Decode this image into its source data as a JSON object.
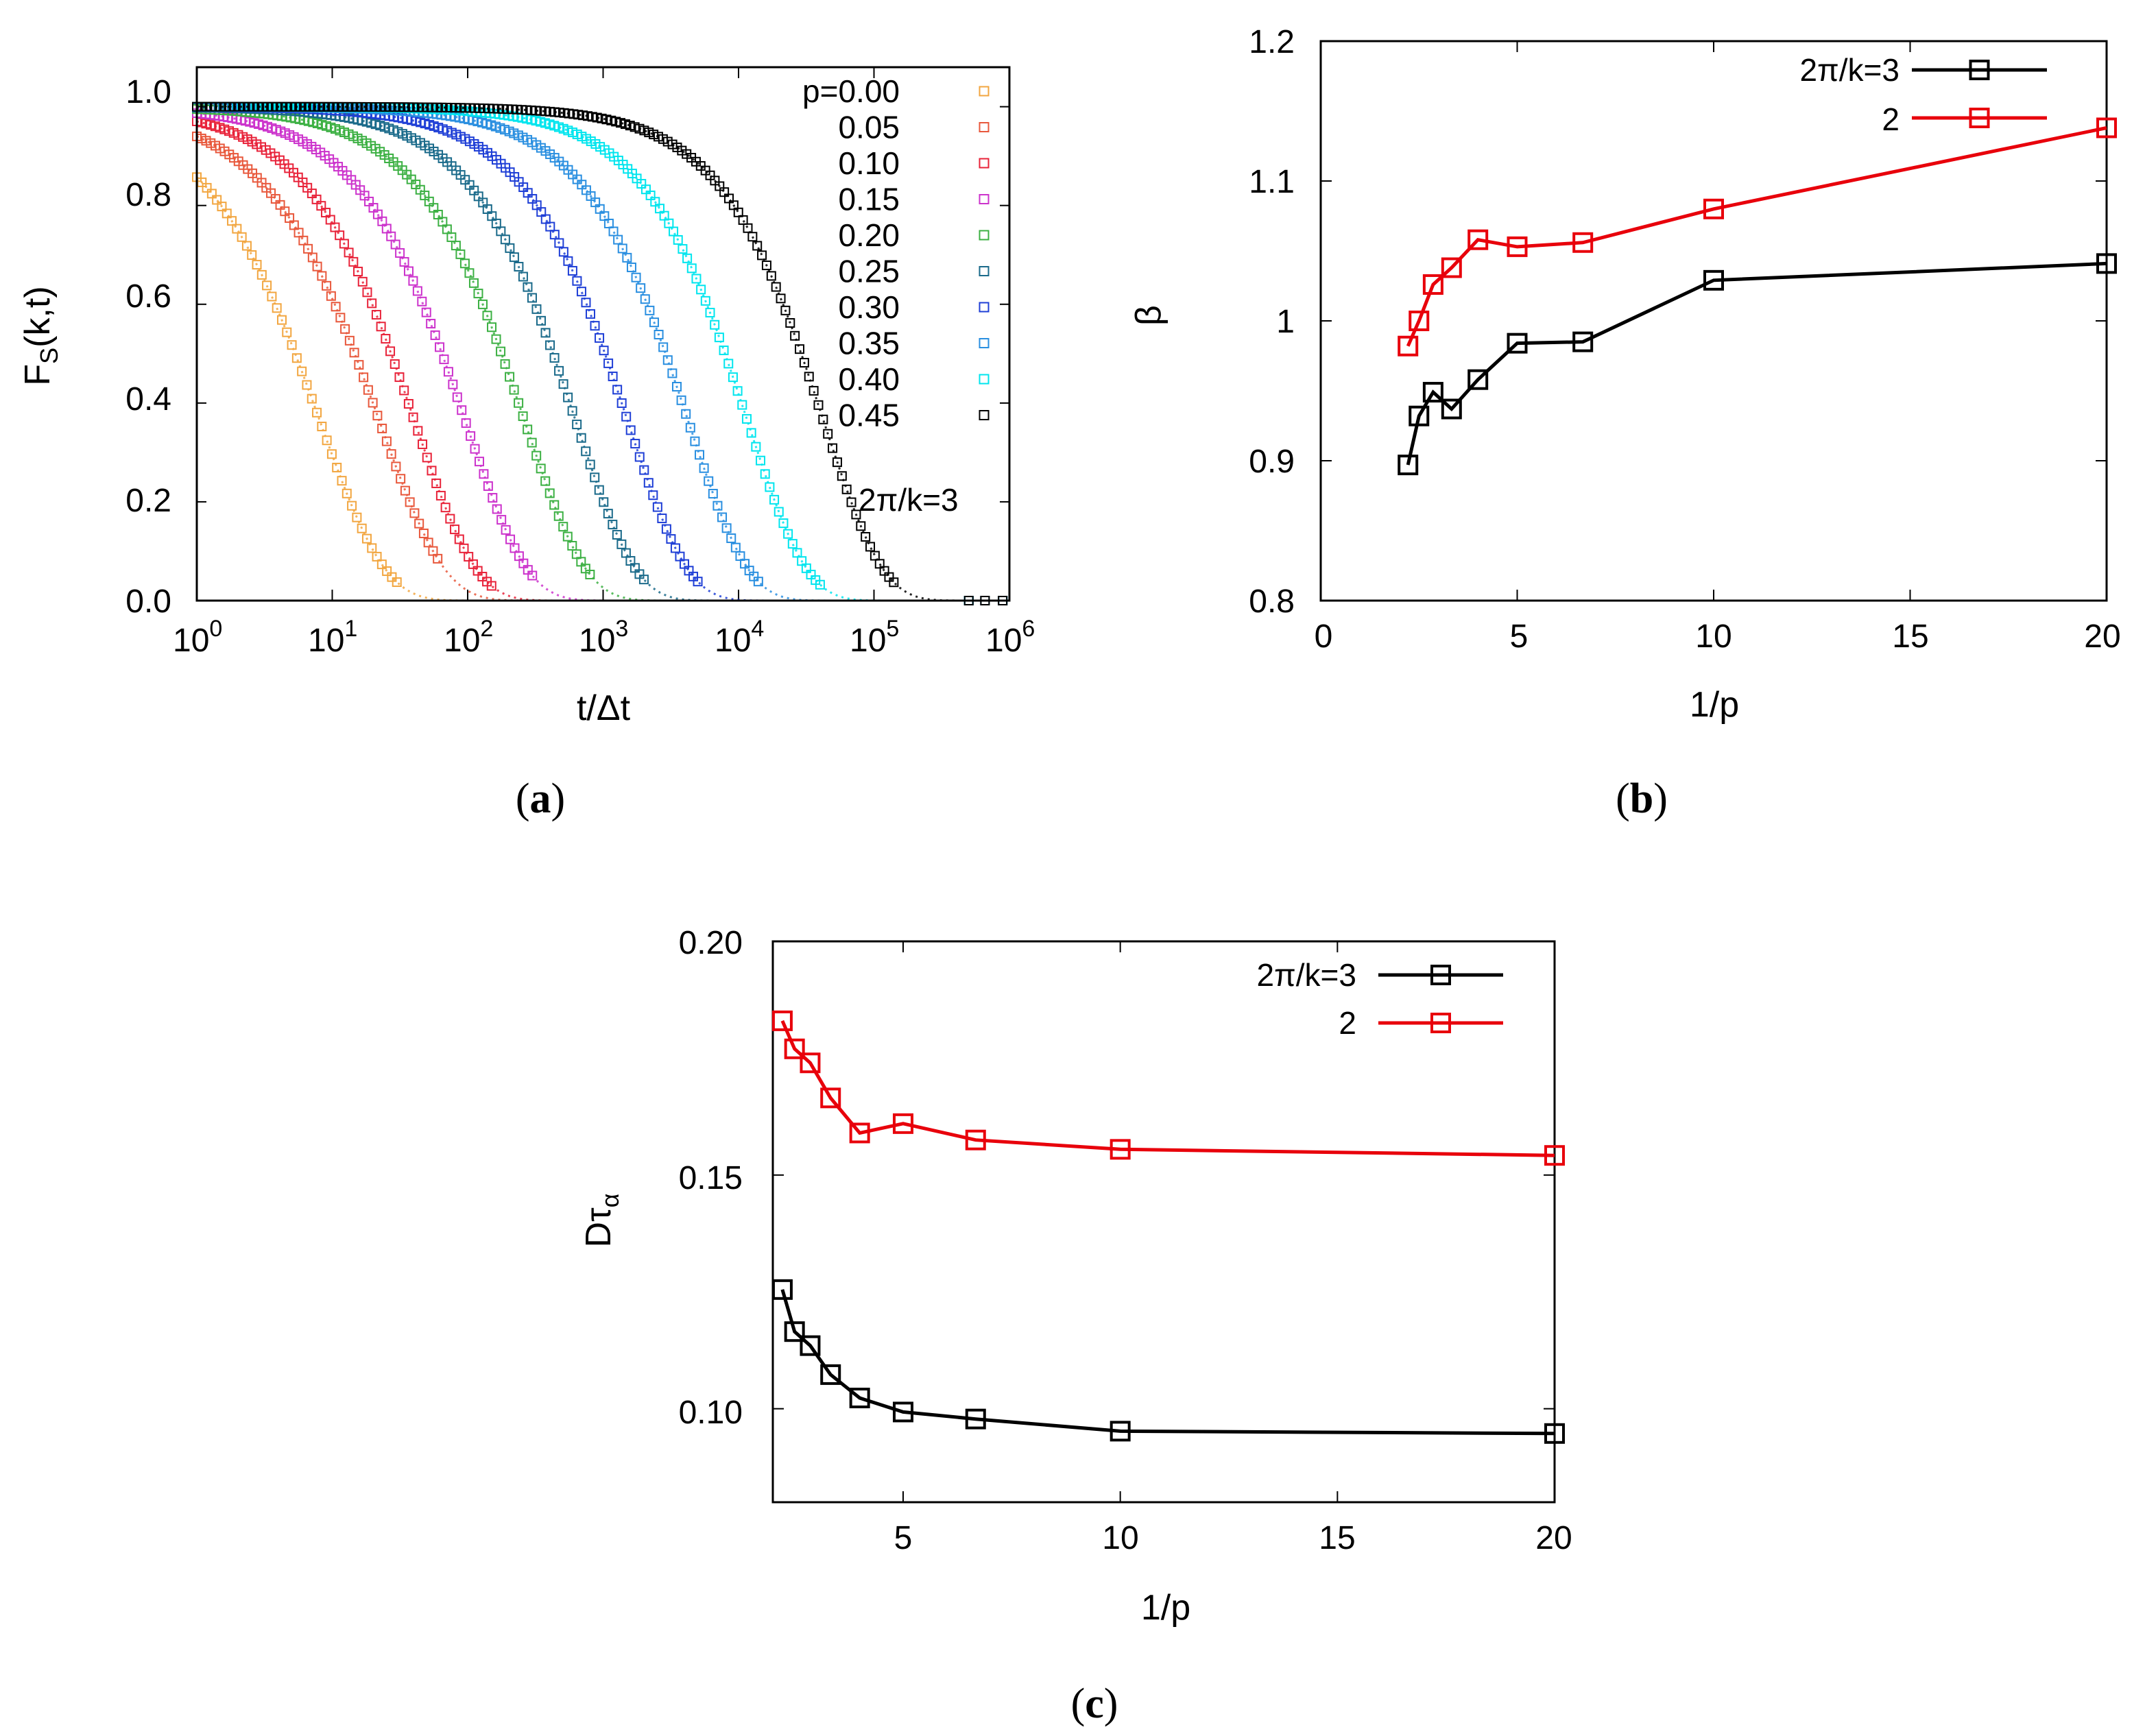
{
  "chart_data": [
    {
      "panel": "a",
      "type": "scatter",
      "caption_open": "(",
      "caption_letter": "a",
      "caption_close": ")",
      "xlabel": "t/Δt",
      "ylabel_main": "F",
      "ylabel_sub": "S",
      "ylabel_rest": "(k,t)",
      "xscale": "log",
      "xlim": [
        1,
        1000000
      ],
      "ylim": [
        0,
        1.08
      ],
      "x_tick_base": "10",
      "x_tick_exponents": [
        "0",
        "1",
        "2",
        "3",
        "4",
        "5",
        "6"
      ],
      "y_ticks": [
        "0.0",
        "0.2",
        "0.4",
        "0.6",
        "0.8",
        "1.0"
      ],
      "annotation": "2π/k=3",
      "legend_position": "top-right",
      "model": "F = exp(-(t/tau)^beta), curves read off the figure",
      "series": [
        {
          "name": "p=0.00",
          "color": "#f2a640",
          "tau": 8,
          "beta": 0.9,
          "tmax": 30
        },
        {
          "name": "0.05",
          "color": "#e8583c",
          "tau": 22,
          "beta": 0.9,
          "tmax": 60
        },
        {
          "name": "0.10",
          "color": "#e8233a",
          "tau": 40,
          "beta": 0.95,
          "tmax": 150
        },
        {
          "name": "0.15",
          "color": "#cc33cc",
          "tau": 95,
          "beta": 0.95,
          "tmax": 300
        },
        {
          "name": "0.20",
          "color": "#3cb043",
          "tau": 260,
          "beta": 0.96,
          "tmax": 800
        },
        {
          "name": "0.25",
          "color": "#1a6a8a",
          "tau": 620,
          "beta": 0.98,
          "tmax": 2000
        },
        {
          "name": "0.30",
          "color": "#1f3fd6",
          "tau": 1500,
          "beta": 0.98,
          "tmax": 5000
        },
        {
          "name": "0.35",
          "color": "#2a8fe0",
          "tau": 4200,
          "beta": 0.98,
          "tmax": 14000
        },
        {
          "name": "0.40",
          "color": "#00e5ee",
          "tau": 11500,
          "beta": 0.99,
          "tmax": 40000
        },
        {
          "name": "0.45",
          "color": "#000000",
          "tau": 42000,
          "beta": 0.99,
          "tmax": 140000
        }
      ]
    },
    {
      "panel": "b",
      "type": "line",
      "caption_open": "(",
      "caption_letter": "b",
      "caption_close": ")",
      "xlabel": "1/p",
      "ylabel": "β",
      "xlim": [
        0,
        20
      ],
      "ylim": [
        0.8,
        1.2
      ],
      "x_ticks": [
        "0",
        "5",
        "10",
        "15",
        "20"
      ],
      "y_ticks": [
        "0.8",
        "0.9",
        "1",
        "1.1",
        "1.2"
      ],
      "legend_position": "top-right",
      "series": [
        {
          "name": "2π/k=3",
          "color": "#000000",
          "x": [
            2.22,
            2.5,
            2.86,
            3.33,
            4.0,
            5.0,
            6.67,
            10.0,
            20.0
          ],
          "y": [
            0.897,
            0.932,
            0.949,
            0.937,
            0.958,
            0.984,
            0.985,
            1.029,
            1.041
          ]
        },
        {
          "name": "2",
          "color": "#e8000b",
          "x": [
            2.22,
            2.5,
            2.86,
            3.33,
            4.0,
            5.0,
            6.67,
            10.0,
            20.0
          ],
          "y": [
            0.982,
            1.0,
            1.026,
            1.038,
            1.058,
            1.053,
            1.056,
            1.08,
            1.138
          ]
        }
      ]
    },
    {
      "panel": "c",
      "type": "line",
      "caption_open": "(",
      "caption_letter": "c",
      "caption_close": ")",
      "xlabel": "1/p",
      "ylabel_main": "Dτ",
      "ylabel_sub": "α",
      "xlim": [
        2,
        20
      ],
      "ylim": [
        0.08,
        0.2
      ],
      "x_tick_values": [
        5,
        10,
        15,
        20
      ],
      "x_ticks": [
        "5",
        "10",
        "15",
        "20"
      ],
      "y_tick_values": [
        0.1,
        0.15,
        0.2
      ],
      "y_ticks": [
        "0.10",
        "0.15",
        "0.20"
      ],
      "legend_position": "top-right",
      "series": [
        {
          "name": "2π/k=3",
          "color": "#000000",
          "x": [
            2.22,
            2.5,
            2.86,
            3.33,
            4.0,
            5.0,
            6.67,
            10.0,
            20.0
          ],
          "y": [
            0.1255,
            0.1165,
            0.1135,
            0.1073,
            0.1023,
            0.0993,
            0.0978,
            0.0952,
            0.0947
          ]
        },
        {
          "name": "2",
          "color": "#e8000b",
          "x": [
            2.22,
            2.5,
            2.86,
            3.33,
            4.0,
            5.0,
            6.67,
            10.0,
            20.0
          ],
          "y": [
            0.183,
            0.177,
            0.174,
            0.1665,
            0.159,
            0.161,
            0.1575,
            0.1555,
            0.1542
          ]
        }
      ]
    }
  ]
}
